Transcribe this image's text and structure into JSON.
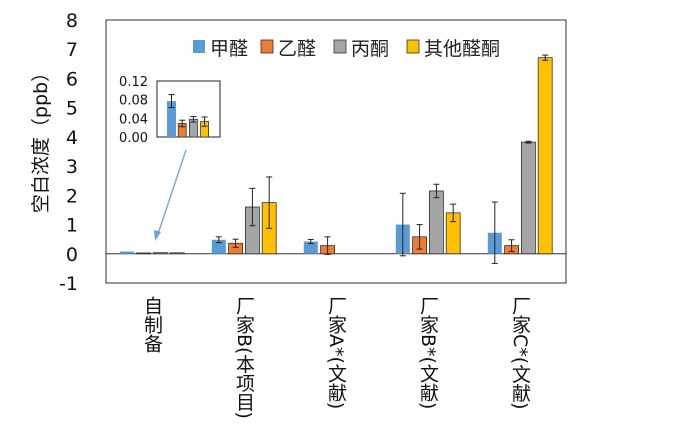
{
  "chart_data": {
    "type": "bar",
    "ylabel": "空白浓度（ppb）",
    "ylim": [
      -1,
      8
    ],
    "yticks": [
      "-1",
      "0",
      "1",
      "2",
      "3",
      "4",
      "5",
      "6",
      "7",
      "8"
    ],
    "grid": false,
    "legend": "top",
    "categories": [
      "自制备",
      "厂家B(本项目)",
      "厂家A*(文献)",
      "厂家B*(文献)",
      "厂家C*(文献)"
    ],
    "series": [
      {
        "name": "甲醛",
        "color": "#5b9bd5",
        "values": [
          0.077,
          0.48,
          0.42,
          1.0,
          0.72
        ],
        "errors": [
          0.014,
          0.1,
          0.07,
          1.07,
          1.05
        ]
      },
      {
        "name": "乙醛",
        "color": "#ed7d31",
        "values": [
          0.029,
          0.36,
          0.28,
          0.58,
          0.28
        ],
        "errors": [
          0.007,
          0.14,
          0.3,
          0.42,
          0.2
        ]
      },
      {
        "name": "丙酮",
        "color": "#a5a5a5",
        "values": [
          0.038,
          1.6,
          null,
          2.15,
          3.82
        ],
        "errors": [
          0.006,
          0.64,
          null,
          0.23,
          0.03
        ]
      },
      {
        "name": "其他醛酮",
        "color": "#ffc000",
        "values": [
          0.033,
          1.75,
          null,
          1.4,
          6.71
        ],
        "errors": [
          0.01,
          0.88,
          null,
          0.3,
          0.09
        ]
      }
    ],
    "inset": {
      "category": "自制备",
      "ylim": [
        0,
        0.12
      ],
      "yticks": [
        "0.12",
        "0.08",
        "0.04",
        "0.00"
      ]
    }
  }
}
